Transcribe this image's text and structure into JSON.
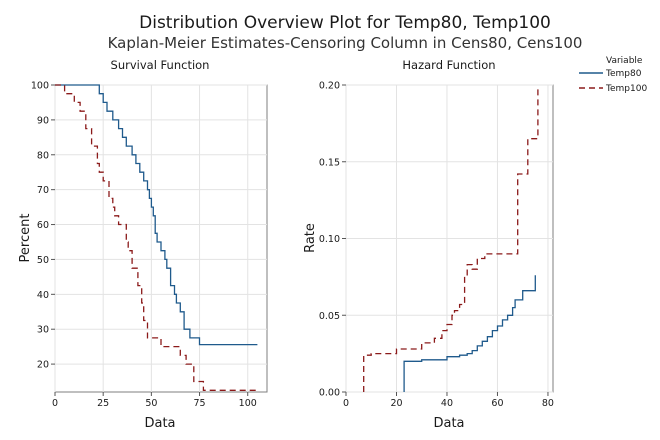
{
  "title": "Distribution Overview Plot for Temp80, Temp100",
  "subtitle": "Kaplan-Meier Estimates-Censoring Column in Cens80, Cens100",
  "legend": {
    "title": "Variable",
    "entries": [
      {
        "name": "Temp80",
        "color": "#1f5a8c",
        "dash": "solid"
      },
      {
        "name": "Temp100",
        "color": "#8b1a1a",
        "dash": "dashed"
      }
    ]
  },
  "chart_data": [
    {
      "type": "line",
      "step": true,
      "title": "Survival Function",
      "xlabel": "Data",
      "ylabel": "Percent",
      "xlim": [
        0,
        110
      ],
      "ylim": [
        12,
        100
      ],
      "xticks": [
        0,
        25,
        50,
        75,
        100
      ],
      "yticks": [
        20,
        30,
        40,
        50,
        60,
        70,
        80,
        90,
        100
      ],
      "grid": true,
      "series": [
        {
          "name": "Temp80",
          "x": [
            0,
            23,
            25,
            27,
            30,
            33,
            35,
            37,
            40,
            42,
            44,
            46,
            48,
            49,
            50,
            51,
            52,
            53,
            55,
            57,
            58,
            60,
            62,
            63,
            65,
            67,
            70,
            75,
            105
          ],
          "y": [
            100,
            97.5,
            95,
            92.5,
            90,
            87.5,
            85,
            82.5,
            80,
            77.5,
            75,
            72.5,
            70,
            67.5,
            65,
            62.5,
            57.5,
            55,
            52.5,
            50,
            47.5,
            42.5,
            40,
            37.5,
            35,
            30,
            27.5,
            25.6,
            25.6
          ]
        },
        {
          "name": "Temp100",
          "x": [
            0,
            5,
            10,
            13,
            16,
            19,
            22,
            23,
            25,
            28,
            30,
            31,
            33,
            37,
            38,
            40,
            43,
            45,
            46,
            48,
            55,
            65,
            68,
            72,
            77,
            80,
            105
          ],
          "y": [
            100,
            97.5,
            95,
            92.5,
            87.5,
            82.5,
            77.5,
            75,
            72.5,
            67.5,
            65,
            62.5,
            60,
            55,
            52.5,
            47.5,
            42.5,
            37.5,
            32.5,
            27.5,
            25,
            22.5,
            20,
            15,
            12.5,
            12.5,
            12.5
          ]
        }
      ]
    },
    {
      "type": "line",
      "step": true,
      "title": "Hazard Function",
      "xlabel": "Data",
      "ylabel": "Rate",
      "xlim": [
        0,
        82
      ],
      "ylim": [
        0,
        0.2
      ],
      "xticks": [
        0,
        20,
        40,
        60,
        80
      ],
      "yticks": [
        0.0,
        0.05,
        0.1,
        0.15,
        0.2
      ],
      "ytick_labels": [
        "0.00",
        "0.05",
        "0.10",
        "0.15",
        "0.20"
      ],
      "grid": true,
      "series": [
        {
          "name": "Temp80",
          "x": [
            23,
            23,
            30,
            40,
            45,
            48,
            50,
            52,
            54,
            56,
            58,
            60,
            62,
            64,
            66,
            67,
            70,
            72,
            74,
            75
          ],
          "y": [
            0,
            0.02,
            0.021,
            0.023,
            0.024,
            0.025,
            0.027,
            0.03,
            0.033,
            0.036,
            0.04,
            0.043,
            0.047,
            0.05,
            0.055,
            0.06,
            0.066,
            0.066,
            0.066,
            0.076
          ]
        },
        {
          "name": "Temp100",
          "x": [
            7,
            7,
            10,
            20,
            30,
            35,
            38,
            40,
            42,
            43,
            45,
            47,
            48,
            50,
            52,
            55,
            60,
            65,
            68,
            70,
            72,
            74,
            76
          ],
          "y": [
            0,
            0.024,
            0.025,
            0.028,
            0.032,
            0.035,
            0.04,
            0.044,
            0.05,
            0.053,
            0.057,
            0.075,
            0.083,
            0.08,
            0.087,
            0.09,
            0.09,
            0.09,
            0.142,
            0.142,
            0.165,
            0.165,
            0.198
          ]
        }
      ]
    }
  ]
}
